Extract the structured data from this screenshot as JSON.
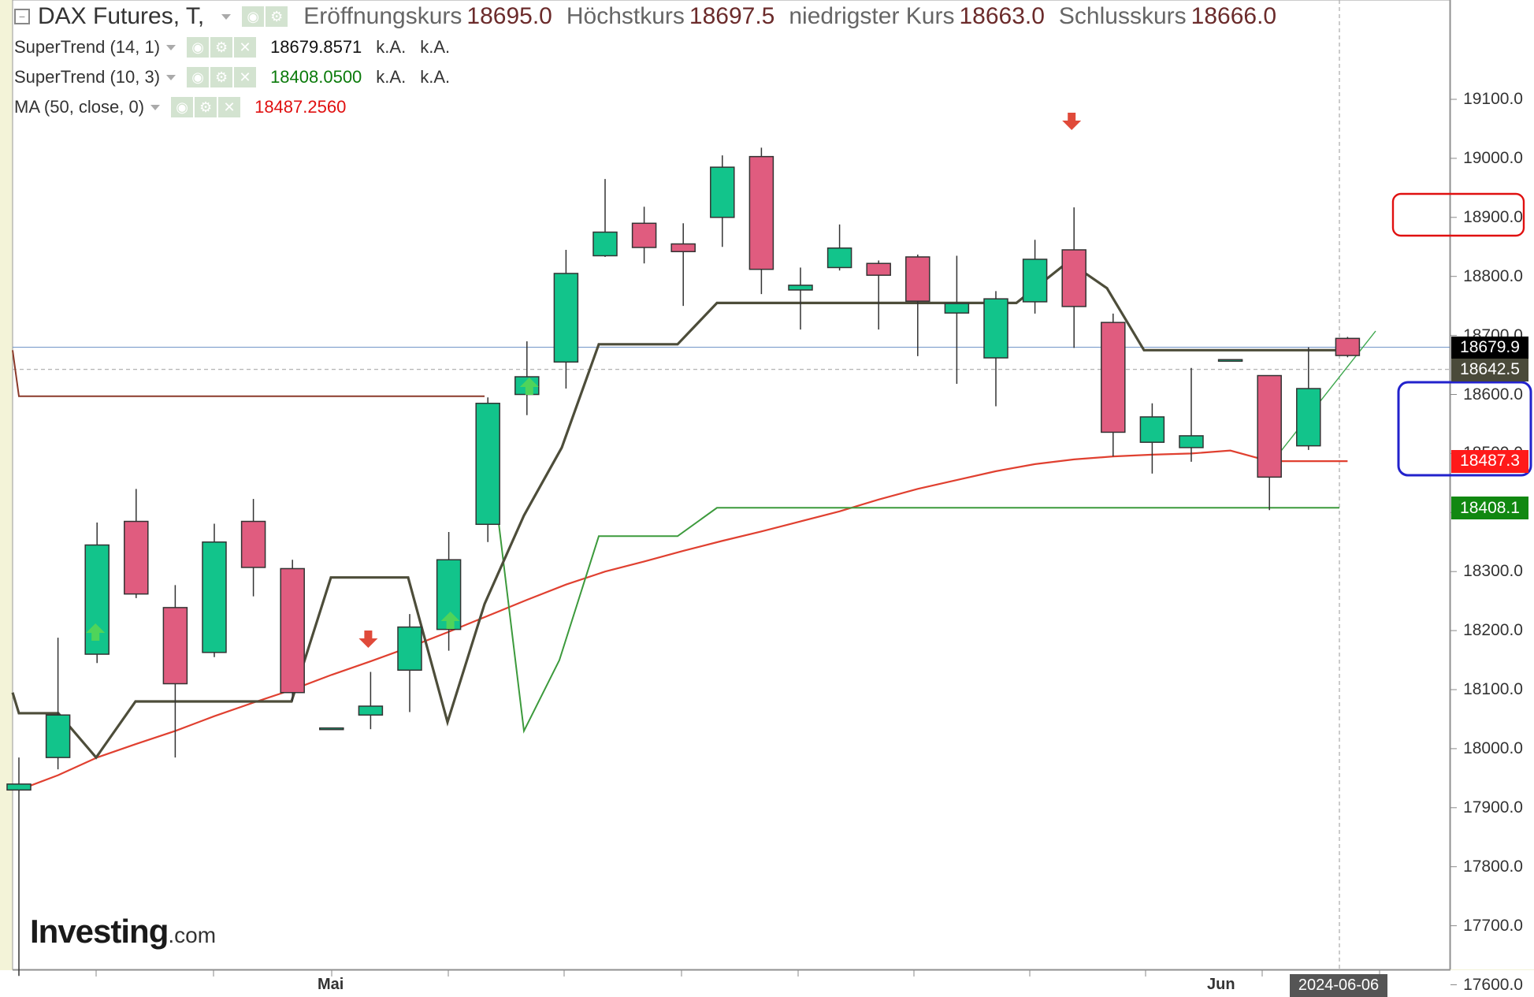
{
  "header": {
    "title": "DAX Futures, T,",
    "ohlc": [
      {
        "label": "Eröffnungskurs",
        "value": "18695.0"
      },
      {
        "label": "Höchstkurs",
        "value": "18697.5"
      },
      {
        "label": "niedrigster Kurs",
        "value": "18663.0"
      },
      {
        "label": "Schlusskurs",
        "value": "18666.0"
      }
    ]
  },
  "indicators": [
    {
      "name": "SuperTrend (14, 1)",
      "value": "18679.8571",
      "extra1": "k.A.",
      "extra2": "k.A.",
      "color": "#111111"
    },
    {
      "name": "SuperTrend (10, 3)",
      "value": "18408.0500",
      "extra1": "k.A.",
      "extra2": "k.A.",
      "color": "#0a7a0a"
    },
    {
      "name": "MA (50, close, 0)",
      "value": "18487.2560",
      "color": "#e01010"
    }
  ],
  "price_axis": [
    "19100.0",
    "19000.0",
    "18900.0",
    "18800.0",
    "18700.0",
    "18600.0",
    "18500.0",
    "18400.0",
    "18300.0",
    "18200.0",
    "18100.0",
    "18000.0",
    "17900.0",
    "17800.0",
    "17700.0",
    "17600.0"
  ],
  "price_tags": [
    {
      "value": "18679.9",
      "bg": "#000000",
      "fg": "#ffffff"
    },
    {
      "value": "18642.5",
      "bg": "#4a4a3a",
      "fg": "#ffffff"
    },
    {
      "value": "18487.3",
      "bg": "#ff1a1a",
      "fg": "#ffffff"
    },
    {
      "value": "18408.1",
      "bg": "#118811",
      "fg": "#ffffff"
    }
  ],
  "x_labels": [
    "Mai",
    "Jun"
  ],
  "date_tag": "2024-06-06",
  "logo": {
    "main": "Investing",
    "suffix": ".com"
  },
  "colors": {
    "up": "#12c48b",
    "down": "#e05c7f",
    "supertrend_fast": "#4d4d3a",
    "supertrend_slow": "#3c9a3c",
    "ma": "#e04030",
    "brown_line": "#8b3a2a"
  },
  "chart_data": {
    "type": "candlestick",
    "title": "DAX Futures, T,",
    "ylim": [
      17520,
      19165
    ],
    "candles": [
      {
        "o": 17930,
        "h": 17985,
        "l": 17615,
        "c": 17940
      },
      {
        "o": 17985,
        "h": 18188,
        "l": 17965,
        "c": 18057
      },
      {
        "o": 18160,
        "h": 18383,
        "l": 18145,
        "c": 18345
      },
      {
        "o": 18385,
        "h": 18440,
        "l": 18255,
        "c": 18262
      },
      {
        "o": 18239,
        "h": 18277,
        "l": 17985,
        "c": 18110
      },
      {
        "o": 18163,
        "h": 18381,
        "l": 18155,
        "c": 18350
      },
      {
        "o": 18385,
        "h": 18423,
        "l": 18258,
        "c": 18307
      },
      {
        "o": 18305,
        "h": 18320,
        "l": 18080,
        "c": 18095
      },
      {
        "o": 18035,
        "h": 18035,
        "l": 18035,
        "c": 18035
      },
      {
        "o": 18057,
        "h": 18130,
        "l": 18033,
        "c": 18072
      },
      {
        "o": 18133,
        "h": 18228,
        "l": 18062,
        "c": 18206
      },
      {
        "o": 18202,
        "h": 18367,
        "l": 18166,
        "c": 18320
      },
      {
        "o": 18380,
        "h": 18595,
        "l": 18350,
        "c": 18585
      },
      {
        "o": 18600,
        "h": 18690,
        "l": 18565,
        "c": 18630
      },
      {
        "o": 18655,
        "h": 18845,
        "l": 18610,
        "c": 18805
      },
      {
        "o": 18835,
        "h": 18965,
        "l": 18833,
        "c": 18875
      },
      {
        "o": 18890,
        "h": 18918,
        "l": 18822,
        "c": 18849
      },
      {
        "o": 18855,
        "h": 18890,
        "l": 18750,
        "c": 18842
      },
      {
        "o": 18900,
        "h": 19005,
        "l": 18850,
        "c": 18985
      },
      {
        "o": 19003,
        "h": 19018,
        "l": 18770,
        "c": 18812
      },
      {
        "o": 18777,
        "h": 18815,
        "l": 18710,
        "c": 18785
      },
      {
        "o": 18815,
        "h": 18888,
        "l": 18810,
        "c": 18848
      },
      {
        "o": 18822,
        "h": 18827,
        "l": 18710,
        "c": 18802
      },
      {
        "o": 18833,
        "h": 18837,
        "l": 18665,
        "c": 18758
      },
      {
        "o": 18738,
        "h": 18835,
        "l": 18618,
        "c": 18754
      },
      {
        "o": 18662,
        "h": 18775,
        "l": 18580,
        "c": 18762
      },
      {
        "o": 18757,
        "h": 18862,
        "l": 18737,
        "c": 18829
      },
      {
        "o": 18845,
        "h": 18917,
        "l": 18679,
        "c": 18749
      },
      {
        "o": 18722,
        "h": 18737,
        "l": 18495,
        "c": 18536
      },
      {
        "o": 18519,
        "h": 18585,
        "l": 18466,
        "c": 18562
      },
      {
        "o": 18510,
        "h": 18645,
        "l": 18486,
        "c": 18530
      },
      {
        "o": 18659,
        "h": 18659,
        "l": 18659,
        "c": 18659
      },
      {
        "o": 18632,
        "h": 18632,
        "l": 18404,
        "c": 18460
      },
      {
        "o": 18513,
        "h": 18680,
        "l": 18506,
        "c": 18610
      },
      {
        "o": 18695,
        "h": 18697.5,
        "l": 18663,
        "c": 18666
      }
    ]
  }
}
